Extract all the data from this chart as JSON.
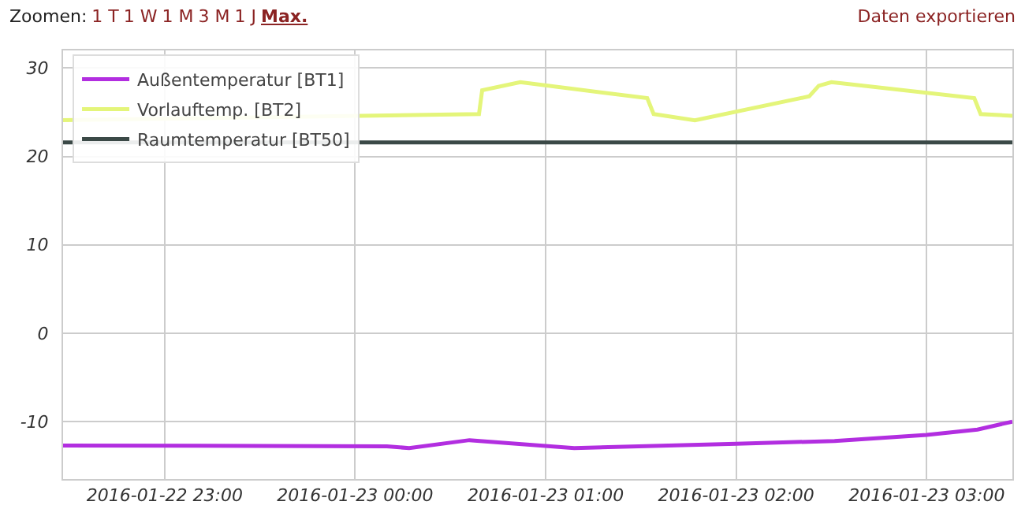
{
  "chart_data": {
    "type": "line",
    "annotations": [
      "Zoomen:",
      "1 T",
      "1 W",
      "1 M",
      "3 M",
      "1 J",
      "Max.",
      "Daten exportieren"
    ],
    "series": [
      {
        "name": "Außentemperatur [BT1]",
        "color": "#b22ee0",
        "x": [
          "2016-01-22T22:28",
          "2016-01-23T00:10",
          "2016-01-23T00:17",
          "2016-01-23T00:36",
          "2016-01-23T01:09",
          "2016-01-23T02:00",
          "2016-01-23T02:31",
          "2016-01-23T03:00",
          "2016-01-23T03:16",
          "2016-01-23T03:27"
        ],
        "values": [
          -12.7,
          -12.8,
          -13.0,
          -12.1,
          -13.0,
          -12.5,
          -12.2,
          -11.5,
          -10.9,
          -10.0
        ]
      },
      {
        "name": "Vorlauftemp. [BT2]",
        "color": "#e4f57a",
        "x": [
          "2016-01-22T22:28",
          "2016-01-23T00:39",
          "2016-01-23T00:40",
          "2016-01-23T00:52",
          "2016-01-23T01:32",
          "2016-01-23T01:34",
          "2016-01-23T01:47",
          "2016-01-23T02:23",
          "2016-01-23T02:26",
          "2016-01-23T02:30",
          "2016-01-23T03:15",
          "2016-01-23T03:17",
          "2016-01-23T03:27"
        ],
        "values": [
          24.1,
          24.8,
          27.5,
          28.4,
          26.6,
          24.8,
          24.1,
          26.8,
          28.0,
          28.4,
          26.6,
          24.8,
          24.6
        ]
      },
      {
        "name": "Raumtemperatur [BT50]",
        "color": "#3b4947",
        "x": [
          "2016-01-22T22:28",
          "2016-01-23T03:27"
        ],
        "values": [
          21.6,
          21.6
        ]
      }
    ],
    "xlim": [
      "2016-01-22T22:28",
      "2016-01-23T03:27"
    ],
    "xticks": [
      {
        "value": "2016-01-22T23:00",
        "label": "2016-01-22 23:00"
      },
      {
        "value": "2016-01-23T00:00",
        "label": "2016-01-23 00:00"
      },
      {
        "value": "2016-01-23T01:00",
        "label": "2016-01-23 01:00"
      },
      {
        "value": "2016-01-23T02:00",
        "label": "2016-01-23 02:00"
      },
      {
        "value": "2016-01-23T03:00",
        "label": "2016-01-23 03:00"
      }
    ],
    "ylim": [
      -16.5,
      32
    ],
    "yticks": [
      -10,
      0,
      10,
      20,
      30
    ],
    "grid": true,
    "legend": "top left",
    "marker": "none",
    "line_style": "solid"
  }
}
